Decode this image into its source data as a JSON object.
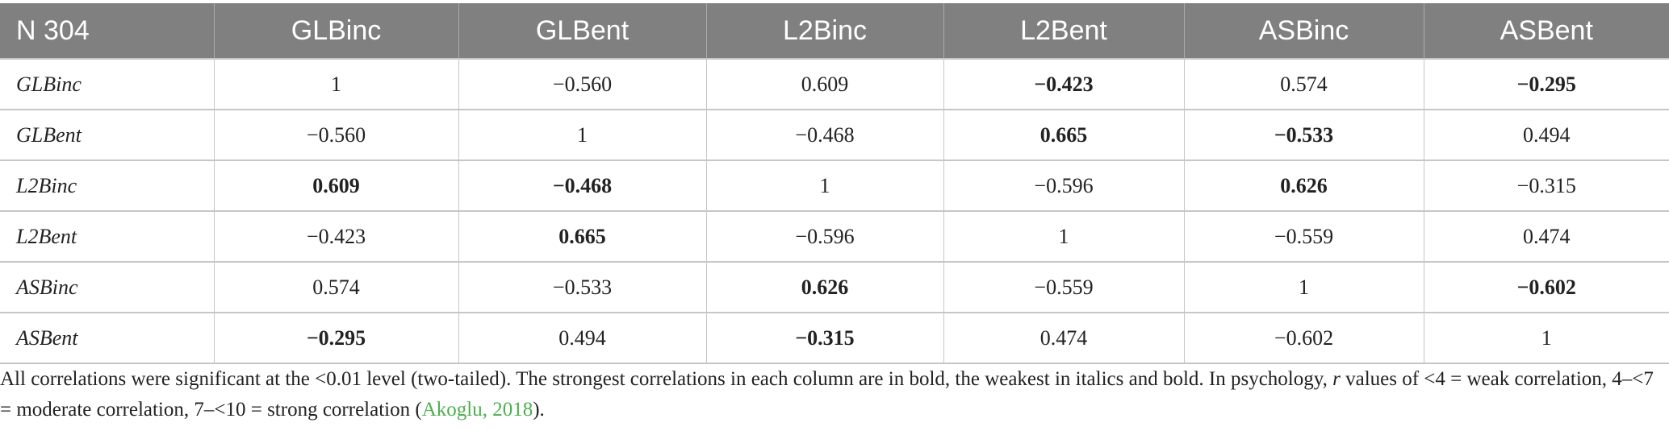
{
  "table": {
    "header": [
      "N 304",
      "GLBinc",
      "GLBent",
      "L2Binc",
      "L2Bent",
      "ASBinc",
      "ASBent"
    ],
    "rows": [
      {
        "label": "GLBinc",
        "cells": [
          "1",
          "−0.560",
          "0.609",
          "−0.423",
          "0.574",
          "−0.295"
        ]
      },
      {
        "label": "GLBent",
        "cells": [
          "−0.560",
          "1",
          "−0.468",
          "0.665",
          "−0.533",
          "0.494"
        ]
      },
      {
        "label": "L2Binc",
        "cells": [
          "0.609",
          "−0.468",
          "1",
          "−0.596",
          "0.626",
          "−0.315"
        ]
      },
      {
        "label": "L2Bent",
        "cells": [
          "−0.423",
          "0.665",
          "−0.596",
          "1",
          "−0.559",
          "0.474"
        ]
      },
      {
        "label": "ASBinc",
        "cells": [
          "0.574",
          "−0.533",
          "0.626",
          "−0.559",
          "1",
          "−0.602"
        ]
      },
      {
        "label": "ASBent",
        "cells": [
          "−0.295",
          "0.494",
          "−0.315",
          "0.474",
          "−0.602",
          "1"
        ]
      }
    ],
    "bold_cells": [
      [
        0,
        3
      ],
      [
        0,
        5
      ],
      [
        1,
        3
      ],
      [
        1,
        4
      ],
      [
        2,
        0
      ],
      [
        2,
        1
      ],
      [
        2,
        4
      ],
      [
        3,
        1
      ],
      [
        4,
        2
      ],
      [
        4,
        5
      ],
      [
        5,
        0
      ],
      [
        5,
        2
      ]
    ]
  },
  "note": {
    "text_before": "All correlations were significant at the <0.01 level (two-tailed). The strongest correlations in each column are in bold, the weakest in italics and bold. In psychology, ",
    "r_symbol": "r",
    "text_middle": " values of <4 = weak correlation, 4–<7 = moderate correlation, 7–<10 = strong correlation (",
    "citation": "Akoglu, 2018",
    "text_after": ")."
  }
}
